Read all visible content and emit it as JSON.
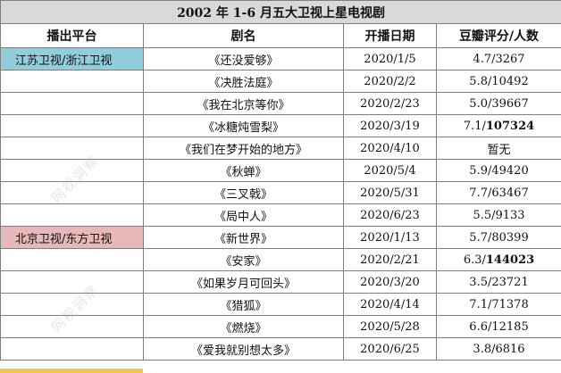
{
  "table": {
    "title": "2002 年 1-6 月五大卫视上星电视剧",
    "headers": {
      "platform": "播出平台",
      "name": "剧名",
      "date": "开播日期",
      "rating": "豆瓣评分/人数"
    },
    "platform_colors": {
      "jiangsu_zhejiang": "#92cddc",
      "beijing_dongfang": "#e6b8b7",
      "hunan": "#f2c84a"
    },
    "rows": [
      {
        "platform": "江苏卫视/浙江卫视",
        "name": "《还没爱够》",
        "date": "2020/1/5",
        "rating_score": "4.7/",
        "rating_count": "3267",
        "count_bold": false
      },
      {
        "platform": "",
        "name": "《决胜法庭》",
        "date": "2020/2/2",
        "rating_score": "5.8/",
        "rating_count": "10492",
        "count_bold": false
      },
      {
        "platform": "",
        "name": "《我在北京等你》",
        "date": "2020/2/23",
        "rating_score": "5.0/",
        "rating_count": "39667",
        "count_bold": false
      },
      {
        "platform": "",
        "name": "《冰糖炖雪梨》",
        "date": "2020/3/19",
        "rating_score": "7.1/",
        "rating_count": "107324",
        "count_bold": true
      },
      {
        "platform": "",
        "name": "《我们在梦开始的地方》",
        "date": "2020/4/10",
        "rating_score": "暂无",
        "rating_count": "",
        "count_bold": false
      },
      {
        "platform": "",
        "name": "《秋蝉》",
        "date": "2020/5/4",
        "rating_score": "5.9/",
        "rating_count": "49420",
        "count_bold": false
      },
      {
        "platform": "",
        "name": "《三叉戟》",
        "date": "2020/5/31",
        "rating_score": "7.7/",
        "rating_count": "63467",
        "count_bold": false
      },
      {
        "platform": "",
        "name": "《局中人》",
        "date": "2020/6/23",
        "rating_score": "5.5/",
        "rating_count": "9133",
        "count_bold": false
      },
      {
        "platform": "北京卫视/东方卫视",
        "name": "《新世界》",
        "date": "2020/1/13",
        "rating_score": "5.7/",
        "rating_count": "80399",
        "count_bold": false
      },
      {
        "platform": "",
        "name": "《安家》",
        "date": "2020/2/21",
        "rating_score": "6.3/",
        "rating_count": "144023",
        "count_bold": true
      },
      {
        "platform": "",
        "name": "《如果岁月可回头》",
        "date": "2020/3/20",
        "rating_score": "3.5/",
        "rating_count": "23721",
        "count_bold": false
      },
      {
        "platform": "",
        "name": "《猎狐》",
        "date": "2020/4/14",
        "rating_score": "7.1/",
        "rating_count": "71378",
        "count_bold": false
      },
      {
        "platform": "",
        "name": "《燃烧》",
        "date": "2020/5/28",
        "rating_score": "6.6/",
        "rating_count": "12185",
        "count_bold": false
      },
      {
        "platform": "",
        "name": "《爱我就别想太多》",
        "date": "2020/6/25",
        "rating_score": "3.8/",
        "rating_count": "6816",
        "count_bold": false
      }
    ]
  },
  "watermark": {
    "text": "网视洞察"
  }
}
